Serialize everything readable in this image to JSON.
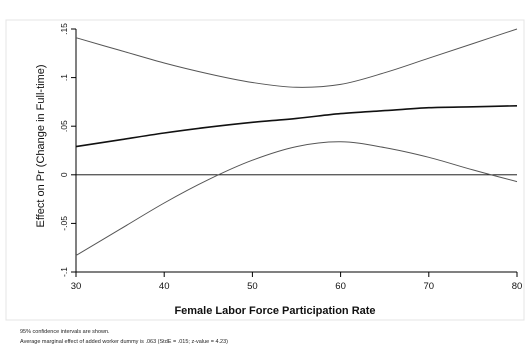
{
  "chart_data": {
    "type": "line",
    "title": "",
    "xlabel": "Female Labor Force Participation Rate",
    "ylabel": "Effect on Pr (Change in Full-time)",
    "xlim": [
      30,
      80
    ],
    "ylim": [
      -0.1,
      0.15
    ],
    "xticks": [
      30,
      40,
      50,
      60,
      70,
      80
    ],
    "xtick_labels": [
      "30",
      "40",
      "50",
      "60",
      "70",
      "80"
    ],
    "yticks": [
      -0.1,
      -0.05,
      0,
      0.05,
      0.1,
      0.15
    ],
    "ytick_labels": [
      "-.1",
      "-.05",
      "0",
      ".05",
      ".1",
      ".15"
    ],
    "grid": false,
    "legend": "none",
    "reference_line_y": 0,
    "x": [
      30,
      35,
      40,
      45,
      50,
      55,
      60,
      65,
      70,
      75,
      80
    ],
    "series": [
      {
        "role": "upper_ci",
        "values": [
          0.141,
          0.128,
          0.115,
          0.104,
          0.095,
          0.09,
          0.093,
          0.105,
          0.12,
          0.135,
          0.15
        ]
      },
      {
        "role": "estimate",
        "values": [
          0.029,
          0.036,
          0.043,
          0.049,
          0.054,
          0.058,
          0.063,
          0.066,
          0.069,
          0.07,
          0.071
        ]
      },
      {
        "role": "lower_ci",
        "values": [
          -0.083,
          -0.056,
          -0.029,
          -0.005,
          0.015,
          0.029,
          0.034,
          0.028,
          0.018,
          0.005,
          -0.007
        ]
      }
    ],
    "colors": {
      "estimate": "#111111",
      "ci": "#555555",
      "axis": "#000000"
    }
  },
  "notes": {
    "line1": "95% confidence intervals are shown.",
    "line2": "Average marginal effect of added worker dummy is .063 (StdE = .015; z-value = 4.23)"
  }
}
